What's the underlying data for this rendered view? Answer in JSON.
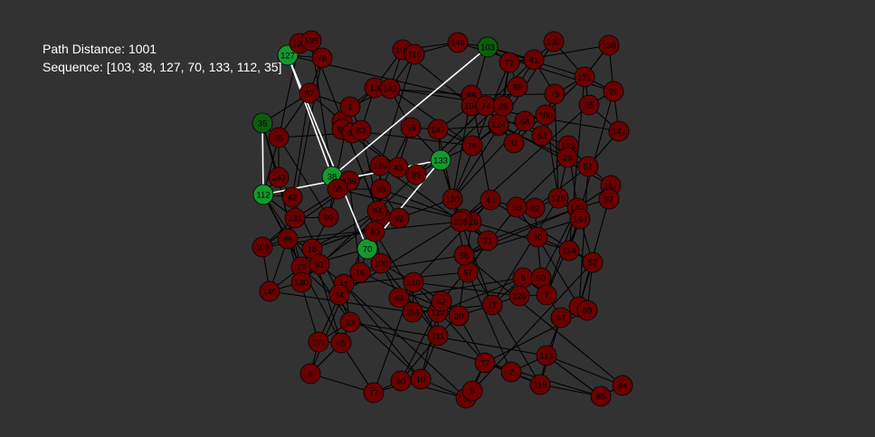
{
  "info": {
    "distance_text": "Path Distance: 1001",
    "sequence_text": "Sequence: [103, 38, 127, 70, 133, 112, 35]"
  },
  "colors": {
    "background": "#323232",
    "node_default": "#6b0000",
    "node_path": "#129a2e",
    "node_endpoint": "#0e5d0e",
    "edge": "#000000",
    "path_edge": "#ffffff"
  },
  "graph": {
    "path_order": [
      103,
      38,
      127,
      70,
      133,
      112,
      35
    ],
    "endpoints": [
      103,
      35
    ],
    "nodes": [
      103,
      127,
      35,
      112,
      38,
      70,
      133,
      123,
      135,
      78,
      106,
      146,
      139,
      138,
      72,
      41,
      121,
      79,
      29,
      87,
      13,
      142,
      88,
      89,
      65,
      109,
      68,
      76,
      24,
      31,
      53,
      128,
      28,
      51,
      141,
      75,
      143,
      56,
      43,
      95,
      120,
      118,
      117,
      97,
      27,
      82,
      107,
      144,
      30,
      114,
      52,
      131,
      86,
      106,
      18,
      73,
      61,
      130,
      145,
      11,
      64,
      16,
      100,
      110,
      63,
      105,
      122,
      111,
      101,
      45,
      8,
      23,
      77,
      80,
      10,
      15,
      9,
      2,
      119,
      113,
      85,
      44,
      37,
      81,
      129,
      92,
      40,
      94,
      116,
      67,
      58,
      108,
      71,
      6,
      50,
      125,
      7,
      124,
      59,
      147,
      104,
      74,
      26,
      93,
      136,
      96,
      55,
      83,
      99,
      48,
      33,
      62,
      20,
      17,
      57,
      4,
      69,
      42,
      126,
      1,
      3,
      60
    ]
  }
}
